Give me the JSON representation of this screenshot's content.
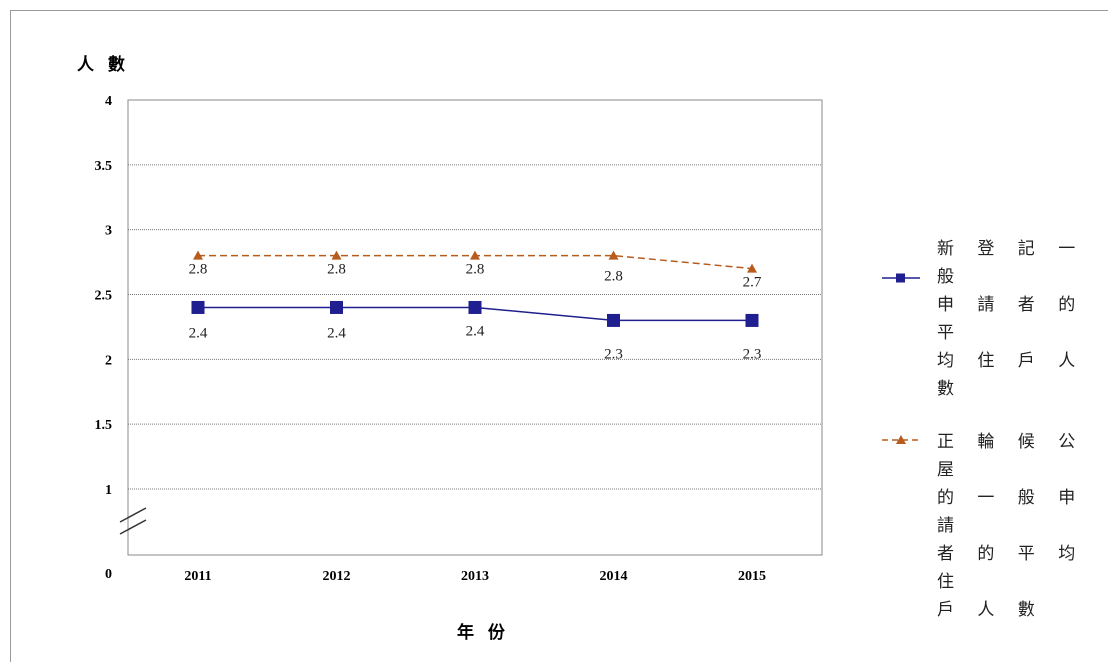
{
  "chart_data": {
    "type": "line",
    "categories": [
      "2011",
      "2012",
      "2013",
      "2014",
      "2015"
    ],
    "ylabel": "人 數",
    "xlabel": "年 份",
    "yticks": [
      "0",
      "1",
      "1.5",
      "2",
      "2.5",
      "3",
      "3.5",
      "4"
    ],
    "ylim": [
      0,
      4
    ],
    "axis_break": true,
    "grid": "horizontal dotted",
    "legend_position": "right",
    "series": [
      {
        "name": "新 登 記 一 般\n申 請 者 的 平\n均 住 戶 人 數",
        "values": [
          2.4,
          2.4,
          2.4,
          2.3,
          2.3
        ],
        "labels": [
          "2.4",
          "2.4",
          "2.4",
          "2.3",
          "2.3"
        ],
        "color": "#1f1f8f",
        "marker": "square",
        "line_style": "solid"
      },
      {
        "name": "正 輪 候 公 屋\n的 一 般 申 請\n者 的 平 均 住\n戶 人 數",
        "values": [
          2.8,
          2.8,
          2.8,
          2.8,
          2.7
        ],
        "labels": [
          "2.8",
          "2.8",
          "2.8",
          "2.8",
          "2.7"
        ],
        "color": "#b85c1e",
        "marker": "triangle",
        "line_style": "dashed"
      }
    ]
  }
}
